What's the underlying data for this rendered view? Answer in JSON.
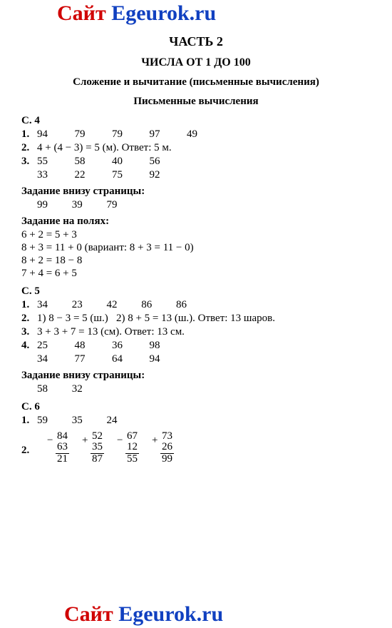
{
  "banner": {
    "site": "Сайт",
    "domain": "Egeurok.ru"
  },
  "title": {
    "part": "ЧАСТЬ 2",
    "range": "ЧИСЛА ОТ 1 ДО 100",
    "topic": "Сложение и вычитание (письменные вычисления)",
    "sub": "Письменные вычисления"
  },
  "s4": {
    "label": "С. 4",
    "p1": {
      "n": "1.",
      "vals": [
        "94",
        "79",
        "79",
        "97",
        "49"
      ]
    },
    "p2": {
      "n": "2.",
      "text": "4 + (4 − 3) = 5 (м). Ответ: 5 м."
    },
    "p3": {
      "n": "3.",
      "row1": [
        "55",
        "58",
        "40",
        "56"
      ],
      "row2": [
        "33",
        "22",
        "75",
        "92"
      ]
    },
    "bottom": {
      "label": "Задание внизу страницы:",
      "vals": [
        "99",
        "39",
        "79"
      ]
    },
    "margins": {
      "label": "Задание на полях:",
      "lines": [
        "6 + 2 = 5 + 3",
        "8 + 3 = 11 + 0 (вариант: 8 + 3 = 11 − 0)",
        "8 + 2 = 18 − 8",
        "7 + 4 = 6 + 5"
      ]
    }
  },
  "s5": {
    "label": "С. 5",
    "p1": {
      "n": "1.",
      "vals": [
        "34",
        "23",
        "42",
        "86",
        "86"
      ]
    },
    "p2": {
      "n": "2.",
      "text": "1) 8 − 3 = 5 (ш.)   2) 8 + 5 = 13 (ш.). Ответ: 13 шаров."
    },
    "p3": {
      "n": "3.",
      "text": "3 + 3 + 7 = 13 (см). Ответ: 13 см."
    },
    "p4": {
      "n": "4.",
      "row1": [
        "25",
        "48",
        "36",
        "98"
      ],
      "row2": [
        "34",
        "77",
        "64",
        "94"
      ]
    },
    "bottom": {
      "label": "Задание внизу страницы:",
      "vals": [
        "58",
        "32"
      ]
    }
  },
  "s6": {
    "label": "С. 6",
    "p1": {
      "n": "1.",
      "vals": [
        "59",
        "35",
        "24"
      ]
    },
    "p2": {
      "n": "2.",
      "cols": [
        {
          "sign": "−",
          "a": "84",
          "b": "63",
          "r": "21"
        },
        {
          "sign": "+",
          "a": "52",
          "b": "35",
          "r": "87"
        },
        {
          "sign": "−",
          "a": "67",
          "b": "12",
          "r": "55"
        },
        {
          "sign": "+",
          "a": "73",
          "b": "26",
          "r": "99"
        }
      ]
    }
  }
}
